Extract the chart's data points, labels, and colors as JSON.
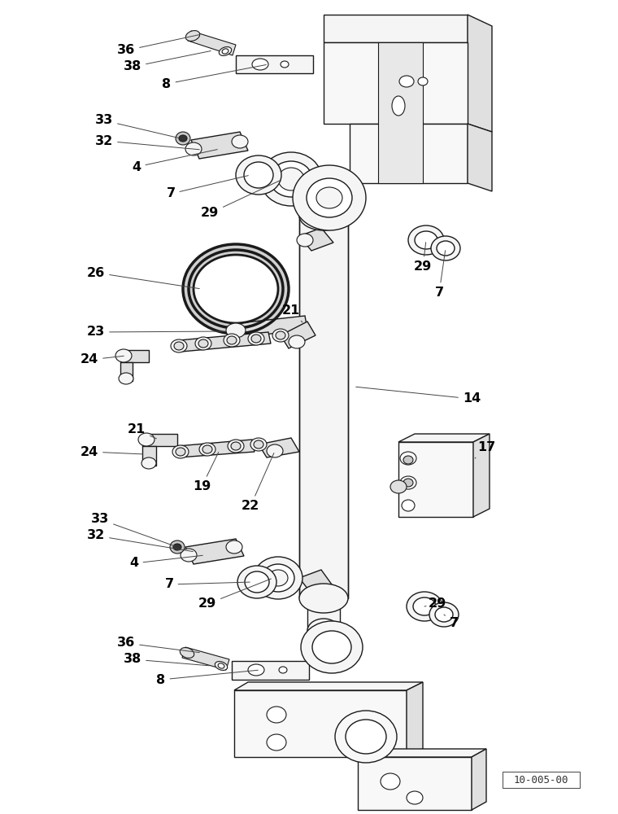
{
  "background_color": "#ffffff",
  "line_color": "#1a1a1a",
  "fill_light": "#f5f5f5",
  "fill_medium": "#e0e0e0",
  "fill_dark": "#c8c8c8",
  "diagram_code": "10-005-00",
  "labels": [
    [
      "36",
      155,
      62
    ],
    [
      "38",
      163,
      82
    ],
    [
      "8",
      205,
      103
    ],
    [
      "33",
      128,
      148
    ],
    [
      "32",
      128,
      173
    ],
    [
      "4",
      168,
      205
    ],
    [
      "7",
      210,
      238
    ],
    [
      "29",
      258,
      262
    ],
    [
      "26",
      118,
      335
    ],
    [
      "21",
      358,
      382
    ],
    [
      "23",
      118,
      408
    ],
    [
      "24",
      110,
      442
    ],
    [
      "14",
      580,
      490
    ],
    [
      "29",
      520,
      328
    ],
    [
      "7",
      540,
      360
    ],
    [
      "17",
      598,
      550
    ],
    [
      "21",
      168,
      528
    ],
    [
      "24",
      110,
      555
    ],
    [
      "19",
      248,
      598
    ],
    [
      "22",
      308,
      622
    ],
    [
      "33",
      123,
      638
    ],
    [
      "32",
      118,
      658
    ],
    [
      "4",
      165,
      692
    ],
    [
      "7",
      208,
      718
    ],
    [
      "29",
      255,
      742
    ],
    [
      "29",
      538,
      742
    ],
    [
      "7",
      558,
      765
    ],
    [
      "36",
      155,
      790
    ],
    [
      "38",
      163,
      810
    ],
    [
      "8",
      198,
      835
    ]
  ]
}
